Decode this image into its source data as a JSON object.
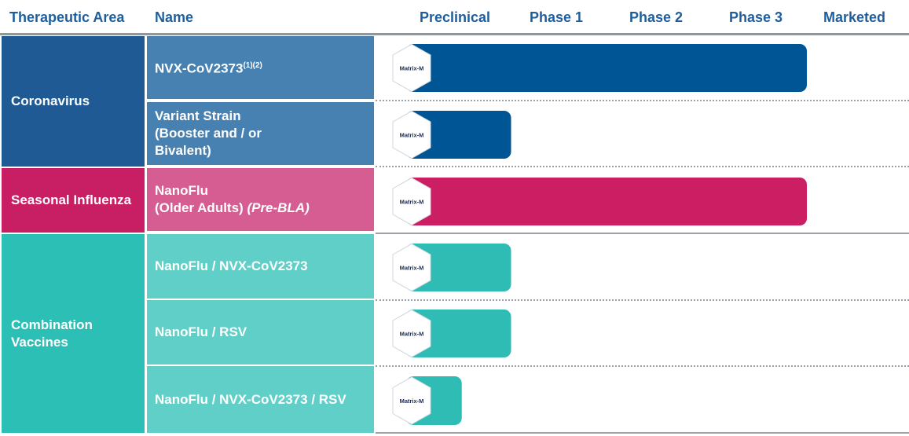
{
  "headers": {
    "area": "Therapeutic Area",
    "name": "Name",
    "stages": [
      "Preclinical",
      "Phase 1",
      "Phase 2",
      "Phase 3",
      "Marketed"
    ]
  },
  "areas": [
    {
      "label": "Coronavirus",
      "color": "#1f5a94"
    },
    {
      "label": "Seasonal Influenza",
      "color": "#c71e64"
    },
    {
      "label": "Combination Vaccines",
      "color": "#2bbfb5"
    }
  ],
  "badge_label": "Matrix-M",
  "chart_data": {
    "type": "bar",
    "orientation": "horizontal",
    "categories": [
      "NVX-CoV2373(1)(2)",
      "Variant Strain (Booster and / or Bivalent)",
      "NanoFlu (Older Adults) (Pre-BLA)",
      "NanoFlu / NVX-CoV2373",
      "NanoFlu / RSV",
      "NanoFlu / NVX-CoV2373 / RSV"
    ],
    "x_axis_stages": [
      "Preclinical",
      "Phase 1",
      "Phase 2",
      "Phase 3",
      "Marketed"
    ],
    "xlim": [
      0,
      5
    ],
    "values": [
      4.0,
      1.0,
      4.0,
      1.0,
      1.0,
      0.5
    ],
    "bar_colors": [
      "#005595",
      "#005595",
      "#cc1e63",
      "#2fbcb5",
      "#2fbcb5",
      "#2fbcb5"
    ],
    "legend": "none"
  },
  "rows": [
    {
      "name": "NVX-CoV2373",
      "sup": "(1)(2)",
      "bg": "#4681b2"
    },
    {
      "name": "Variant Strain (Booster and / or Bivalent)",
      "bg": "#4681b2"
    },
    {
      "name": "NanoFlu",
      "name_line2": "(Older Adults)",
      "name_italic": "(Pre-BLA)",
      "bg": "#d55d91"
    },
    {
      "name": "NanoFlu / NVX-CoV2373",
      "bg": "#5fcfc8"
    },
    {
      "name": "NanoFlu / RSV",
      "bg": "#5fcfc8"
    },
    {
      "name": "NanoFlu / NVX-CoV2373 / RSV",
      "bg": "#5fcfc8"
    }
  ]
}
